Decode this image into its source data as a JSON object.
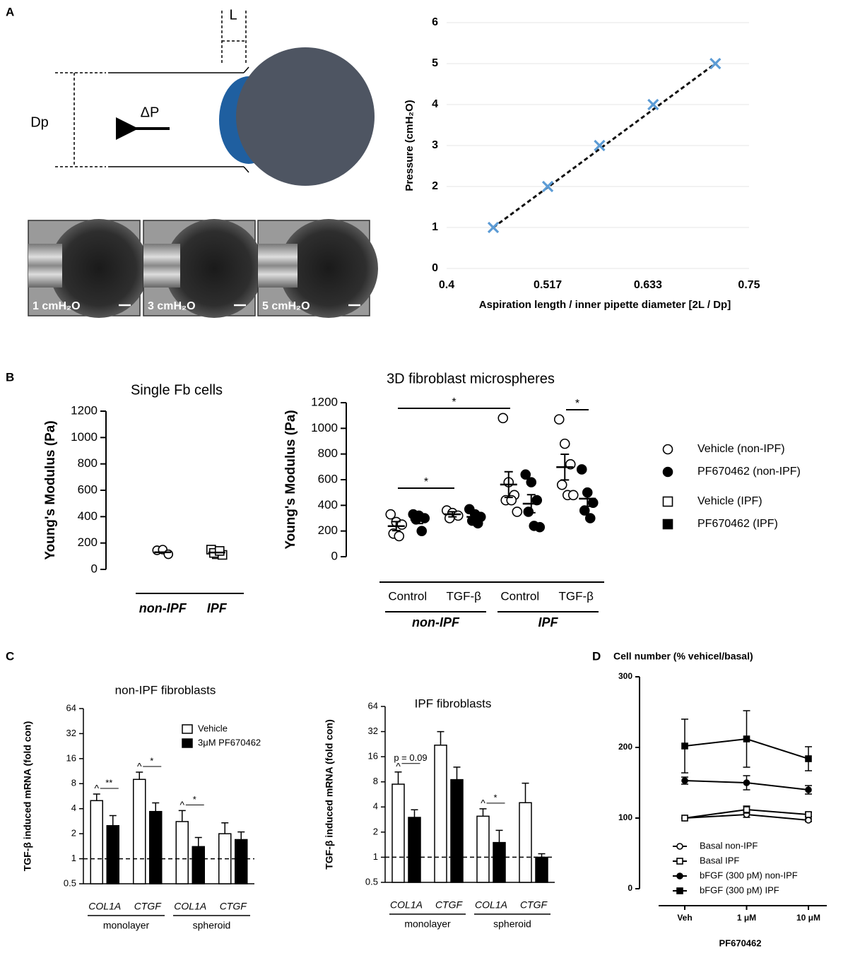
{
  "panel_labels": [
    "A",
    "B",
    "C",
    "D"
  ],
  "diagram": {
    "labels": [
      "L",
      "Dp",
      "ΔP"
    ],
    "images": [
      "1 cmH₂O",
      "3 cmH₂O",
      "5 cmH₂O"
    ]
  },
  "chart_data": [
    {
      "type": "scatter",
      "x": [
        0.454,
        0.517,
        0.577,
        0.639,
        0.711
      ],
      "values": [
        1,
        2,
        3,
        4,
        5
      ],
      "color": "#5b9bd5",
      "trendline": "dashed",
      "xlim": [
        0.4,
        0.75
      ],
      "xticks": [
        0.4,
        0.517,
        0.633,
        0.75
      ],
      "ylim": [
        0,
        6
      ],
      "yticks": [
        0,
        1,
        2,
        3,
        4,
        5,
        6
      ],
      "grid": true,
      "xlabel": "Aspiration length / inner pipette diameter [2L / Dp]",
      "ylabel": "Pressure (cmH₂O)"
    },
    {
      "type": "dot",
      "title": "Single Fb cells",
      "ylabel": "Young's Modulus (Pa)",
      "ylim": [
        0,
        1200
      ],
      "yticks": [
        0,
        200,
        400,
        600,
        800,
        1000,
        1200
      ],
      "categories": [
        "non-IPF",
        "IPF"
      ],
      "series": [
        {
          "marker": "circle",
          "filled": false,
          "values": [
            [
              145,
              150,
              115
            ],
            null
          ],
          "mean": [
            130,
            null
          ]
        },
        {
          "marker": "square",
          "filled": false,
          "values": [
            null,
            [
              150,
              115,
              110,
              125,
              140
            ]
          ],
          "mean": [
            null,
            128
          ]
        }
      ]
    },
    {
      "type": "dot",
      "title": "3D fibroblast microspheres",
      "ylabel": "Young's Modulus  (Pa)",
      "ylim": [
        0,
        1200
      ],
      "yticks": [
        0,
        200,
        400,
        600,
        800,
        1000,
        1200
      ],
      "categories": [
        "Control",
        "TGF-β",
        "Control",
        "TGF-β"
      ],
      "groups": [
        "non-IPF",
        "IPF"
      ],
      "plot_marker": "circle",
      "legend": "right",
      "annotations": [
        "*",
        "*",
        "*"
      ],
      "series": [
        {
          "name": "Vehicle (non-IPF)",
          "marker": "circle",
          "filled": false,
          "values": [
            [
              330,
              270,
              250,
              180,
              160
            ],
            [
              360,
              340,
              320,
              300
            ],
            null,
            null
          ],
          "mean": [
            238,
            330,
            null,
            null
          ],
          "sem": [
            35,
            20,
            null,
            null
          ]
        },
        {
          "name": "PF670462 (non-IPF)",
          "marker": "circle",
          "filled": true,
          "values": [
            [
              330,
              320,
              300,
              290,
              200
            ],
            [
              370,
              330,
              310,
              280,
              260
            ],
            null,
            null
          ],
          "mean": [
            288,
            310,
            null,
            null
          ],
          "sem": [
            30,
            30,
            null,
            null
          ]
        },
        {
          "name": "Vehicle (IPF)",
          "marker": "square",
          "filled": false,
          "values": [
            null,
            null,
            [
              1080,
              580,
              480,
              440,
              440,
              350
            ],
            [
              1070,
              880,
              720,
              560,
              480,
              480
            ]
          ],
          "mean": [
            null,
            null,
            562,
            698
          ],
          "sem": [
            null,
            null,
            100,
            100
          ]
        },
        {
          "name": "PF670462 (IPF)",
          "marker": "square",
          "filled": true,
          "values": [
            null,
            null,
            [
              640,
              580,
              440,
              350,
              240,
              230
            ],
            [
              680,
              500,
              420,
              360,
              300
            ]
          ],
          "mean": [
            null,
            null,
            413,
            452
          ],
          "sem": [
            null,
            null,
            70,
            60
          ]
        }
      ]
    },
    {
      "type": "bar",
      "log_scale": true,
      "title": "non-IPF fibroblasts",
      "ylabel": "TGF-β induced mRNA (fold con)",
      "ylim": [
        0.5,
        64
      ],
      "yticks": [
        0.5,
        1,
        2,
        4,
        8,
        16,
        32,
        64
      ],
      "reference_line": 1,
      "categories": [
        "COL1A",
        "CTGF",
        "COL1A",
        "CTGF"
      ],
      "groups": [
        "monolayer",
        "spheroid"
      ],
      "legend": "top-right",
      "annotations": [
        "^",
        "**",
        "^",
        "*",
        "^",
        "*"
      ],
      "series": [
        {
          "name": "Vehicle",
          "color": "#ffffff",
          "values": [
            5,
            9,
            2.8,
            2
          ],
          "errors": [
            1,
            2,
            1,
            0.7
          ]
        },
        {
          "name": "3μM PF670462",
          "color": "#000000",
          "values": [
            2.5,
            3.7,
            1.4,
            1.7
          ],
          "errors": [
            0.8,
            1,
            0.4,
            0.4
          ]
        }
      ]
    },
    {
      "type": "bar",
      "log_scale": true,
      "title": "IPF fibroblasts",
      "ylabel": "TGF-β induced mRNA (fold con)",
      "ylim": [
        0.5,
        64
      ],
      "yticks": [
        0.5,
        1,
        2,
        4,
        8,
        16,
        32,
        64
      ],
      "reference_line": 1,
      "categories": [
        "COL1A",
        "CTGF",
        "COL1A",
        "CTGF"
      ],
      "groups": [
        "monolayer",
        "spheroid"
      ],
      "annotations": [
        "p = 0.09",
        "^",
        "^",
        "*"
      ],
      "series": [
        {
          "color": "#ffffff",
          "values": [
            7.5,
            22,
            3.1,
            4.5
          ],
          "errors": [
            3,
            10,
            0.7,
            3.2
          ]
        },
        {
          "color": "#000000",
          "values": [
            3,
            8.5,
            1.5,
            1
          ],
          "errors": [
            0.7,
            3.5,
            0.6,
            0.1
          ]
        }
      ]
    },
    {
      "type": "line",
      "title": "Cell number (% vehicel/basal)",
      "xlabel": "PF670462",
      "categories": [
        "Veh",
        "1 μM",
        "10 μM"
      ],
      "ylim": [
        0,
        300
      ],
      "yticks": [
        0,
        100,
        200,
        300
      ],
      "legend": "bottom-left",
      "series": [
        {
          "name": "Basal non-IPF",
          "marker": "circle",
          "filled": false,
          "values": [
            100,
            105,
            97
          ],
          "errors": [
            0,
            4,
            2
          ]
        },
        {
          "name": "Basal IPF",
          "marker": "square",
          "filled": false,
          "values": [
            100,
            112,
            105
          ],
          "errors": [
            0,
            5,
            3
          ]
        },
        {
          "name": "bFGF (300 pM) non-IPF",
          "marker": "circle",
          "filled": true,
          "values": [
            153,
            150,
            140
          ],
          "errors": [
            5,
            10,
            6
          ]
        },
        {
          "name": "bFGF (300 pM) IPF",
          "marker": "square",
          "filled": true,
          "values": [
            202,
            212,
            184
          ],
          "errors": [
            38,
            40,
            17
          ]
        }
      ]
    }
  ]
}
